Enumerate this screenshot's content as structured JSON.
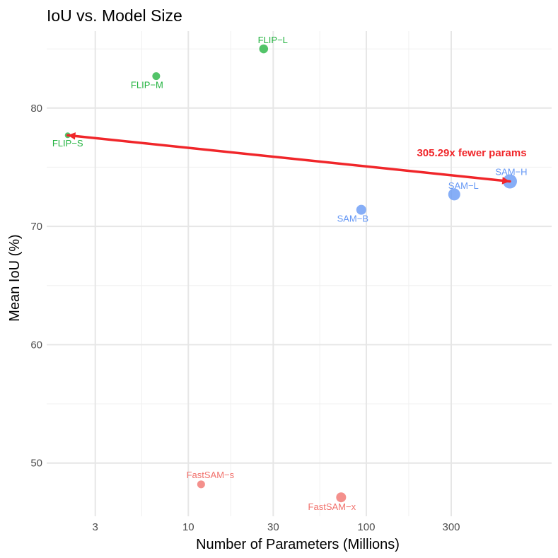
{
  "chart_data": {
    "type": "scatter",
    "title": "IoU vs. Model Size",
    "xlabel": "Number of Parameters (Millions)",
    "ylabel": "Mean IoU (%)",
    "x_scale": "log10",
    "xlim": [
      1.6,
      1100
    ],
    "ylim": [
      45.5,
      86.5
    ],
    "x_ticks": [
      3,
      10,
      30,
      100,
      300
    ],
    "x_tick_labels": [
      "3",
      "10",
      "30",
      "100",
      "300"
    ],
    "y_ticks": [
      50,
      60,
      70,
      80
    ],
    "y_tick_labels": [
      "50",
      "60",
      "70",
      "80"
    ],
    "x_minor": [
      5.477,
      17.32,
      54.77,
      173.2
    ],
    "y_minor": [
      55,
      65,
      75,
      85
    ],
    "grid": true,
    "points": [
      {
        "label": "FLIP−S",
        "family": "FLIP",
        "x": 2.1,
        "y": 77.7,
        "size": 2
      },
      {
        "label": "FLIP−M",
        "family": "FLIP",
        "x": 6.6,
        "y": 82.7,
        "size": 4
      },
      {
        "label": "FLIP−L",
        "family": "FLIP",
        "x": 26.5,
        "y": 85.0,
        "size": 5
      },
      {
        "label": "SAM−B",
        "family": "SAM",
        "x": 93.7,
        "y": 71.4,
        "size": 6
      },
      {
        "label": "SAM−L",
        "family": "SAM",
        "x": 312,
        "y": 72.7,
        "size": 8
      },
      {
        "label": "SAM−H",
        "family": "SAM",
        "x": 641,
        "y": 73.8,
        "size": 10
      },
      {
        "label": "FastSAM−s",
        "family": "FastSAM",
        "x": 11.8,
        "y": 48.2,
        "size": 4
      },
      {
        "label": "FastSAM−x",
        "family": "FastSAM",
        "x": 72.2,
        "y": 47.1,
        "size": 6
      }
    ],
    "family_colors": {
      "FLIP": "#22b33f",
      "SAM": "#6497f5",
      "FastSAM": "#f1716c"
    },
    "annotation": {
      "text": "305.29x fewer params",
      "color": "#f0262a",
      "arrow": {
        "from": [
          641,
          73.8
        ],
        "to": [
          2.1,
          77.7
        ]
      }
    }
  }
}
